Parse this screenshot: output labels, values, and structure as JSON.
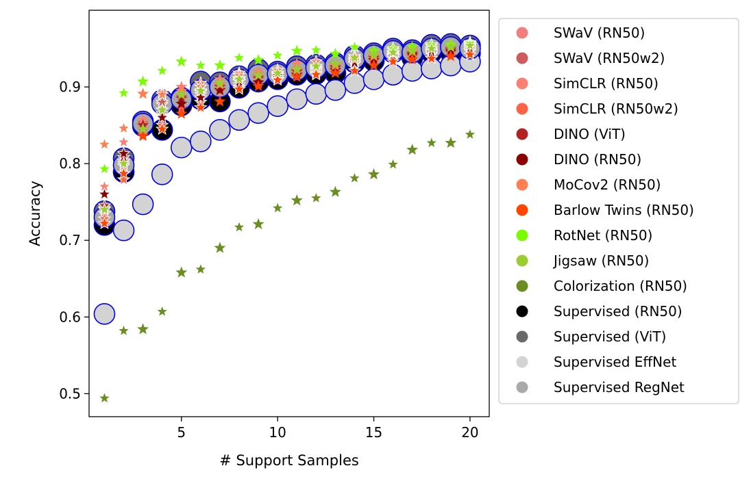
{
  "chart_data": {
    "type": "scatter",
    "title": "",
    "xlabel": "# Support Samples",
    "ylabel": "Accuracy",
    "xlim": [
      0.2,
      21
    ],
    "ylim": [
      0.47,
      1.0
    ],
    "xticks": [
      5,
      10,
      15,
      20
    ],
    "xtick_labels": [
      "5",
      "10",
      "15",
      "20"
    ],
    "yticks": [
      0.5,
      0.6,
      0.7,
      0.8,
      0.9
    ],
    "ytick_labels": [
      "0.5",
      "0.6",
      "0.7",
      "0.8",
      "0.9"
    ],
    "grid": false,
    "legend_position": "outside-right",
    "x": [
      1,
      2,
      3,
      4,
      5,
      6,
      7,
      8,
      9,
      10,
      11,
      12,
      13,
      14,
      15,
      16,
      17,
      18,
      19,
      20
    ],
    "series": [
      {
        "name": "SWaV (RN50)",
        "color": "#f08080",
        "marker": "star",
        "values": [
          0.735,
          0.797,
          0.848,
          0.877,
          0.884,
          0.89,
          0.902,
          0.907,
          0.91,
          0.912,
          0.918,
          0.922,
          0.924,
          0.933,
          0.936,
          0.94,
          0.942,
          0.946,
          0.948,
          0.95
        ]
      },
      {
        "name": "SWaV (RN50w2)",
        "color": "#cd5c5c",
        "marker": "star",
        "values": [
          0.742,
          0.803,
          0.853,
          0.88,
          0.887,
          0.894,
          0.905,
          0.911,
          0.913,
          0.916,
          0.921,
          0.924,
          0.926,
          0.935,
          0.938,
          0.942,
          0.944,
          0.948,
          0.95,
          0.952
        ]
      },
      {
        "name": "SimCLR (RN50)",
        "color": "#fa8072",
        "marker": "star",
        "values": [
          0.77,
          0.828,
          0.857,
          0.893,
          0.9,
          0.905,
          0.91,
          0.918,
          0.92,
          0.922,
          0.93,
          0.933,
          0.929,
          0.94,
          0.943,
          0.948,
          0.95,
          0.953,
          0.955,
          0.958
        ]
      },
      {
        "name": "SimCLR (RN50w2)",
        "color": "#ff6347",
        "marker": "star",
        "values": [
          0.728,
          0.779,
          0.838,
          0.85,
          0.872,
          0.88,
          0.895,
          0.9,
          0.905,
          0.91,
          0.915,
          0.918,
          0.92,
          0.93,
          0.933,
          0.937,
          0.939,
          0.942,
          0.944,
          0.946
        ]
      },
      {
        "name": "DINO (ViT)",
        "color": "#b22222",
        "marker": "star",
        "values": [
          0.745,
          0.808,
          0.85,
          0.865,
          0.885,
          0.893,
          0.9,
          0.908,
          0.911,
          0.915,
          0.92,
          0.924,
          0.925,
          0.934,
          0.938,
          0.941,
          0.943,
          0.946,
          0.948,
          0.95
        ]
      },
      {
        "name": "DINO (RN50)",
        "color": "#8b0000",
        "marker": "star",
        "values": [
          0.76,
          0.813,
          0.845,
          0.86,
          0.878,
          0.886,
          0.896,
          0.903,
          0.906,
          0.912,
          0.916,
          0.92,
          0.922,
          0.931,
          0.935,
          0.939,
          0.941,
          0.944,
          0.946,
          0.948
        ]
      },
      {
        "name": "MoCov2 (RN50)",
        "color": "#ff7f50",
        "marker": "star",
        "values": [
          0.825,
          0.846,
          0.891,
          0.89,
          0.895,
          0.9,
          0.903,
          0.915,
          0.916,
          0.918,
          0.922,
          0.925,
          0.928,
          0.936,
          0.94,
          0.944,
          0.946,
          0.95,
          0.952,
          0.955
        ]
      },
      {
        "name": "Barlow Twins (RN50)",
        "color": "#ff4500",
        "marker": "star",
        "values": [
          0.722,
          0.787,
          0.836,
          0.845,
          0.865,
          0.873,
          0.881,
          0.897,
          0.901,
          0.909,
          0.913,
          0.916,
          0.918,
          0.921,
          0.928,
          0.933,
          0.936,
          0.937,
          0.94,
          0.942
        ]
      },
      {
        "name": "RotNet (RN50)",
        "color": "#7cfc00",
        "marker": "star",
        "values": [
          0.793,
          0.892,
          0.907,
          0.921,
          0.933,
          0.928,
          0.928,
          0.938,
          0.935,
          0.941,
          0.947,
          0.948,
          0.943,
          0.952,
          0.947,
          0.95,
          0.952,
          0.955,
          0.955,
          0.957
        ]
      },
      {
        "name": "Jigsaw (RN50)",
        "color": "#9acd32",
        "marker": "star",
        "values": [
          0.74,
          0.8,
          0.845,
          0.87,
          0.89,
          0.895,
          0.905,
          0.91,
          0.915,
          0.918,
          0.923,
          0.927,
          0.93,
          0.938,
          0.942,
          0.945,
          0.947,
          0.95,
          0.952,
          0.954
        ]
      },
      {
        "name": "Colorization (RN50)",
        "color": "#6b8e23",
        "marker": "star",
        "values": [
          0.494,
          0.582,
          0.584,
          0.607,
          0.658,
          0.662,
          0.69,
          0.717,
          0.721,
          0.742,
          0.752,
          0.755,
          0.763,
          0.781,
          0.786,
          0.799,
          0.818,
          0.827,
          0.827,
          0.838
        ]
      },
      {
        "name": "Supervised (RN50)",
        "color": "#000000",
        "marker": "circle",
        "values": [
          0.72,
          0.789,
          0.849,
          0.844,
          0.876,
          0.884,
          0.881,
          0.899,
          0.907,
          0.91,
          0.916,
          0.917,
          0.918,
          0.932,
          0.934,
          0.945,
          0.938,
          0.945,
          0.945,
          0.944
        ]
      },
      {
        "name": "Supervised (ViT)",
        "color": "#696969",
        "marker": "circle",
        "values": [
          0.738,
          0.807,
          0.855,
          0.883,
          0.886,
          0.907,
          0.906,
          0.914,
          0.923,
          0.92,
          0.927,
          0.929,
          0.931,
          0.941,
          0.944,
          0.95,
          0.948,
          0.955,
          0.956,
          0.954
        ]
      },
      {
        "name": "Supervised EffNet",
        "color": "#d3d3d3",
        "marker": "circle",
        "values": [
          0.604,
          0.713,
          0.747,
          0.786,
          0.821,
          0.829,
          0.844,
          0.857,
          0.866,
          0.875,
          0.884,
          0.891,
          0.896,
          0.905,
          0.91,
          0.916,
          0.921,
          0.924,
          0.928,
          0.933
        ]
      },
      {
        "name": "Supervised RegNet",
        "color": "#a9a9a9",
        "marker": "circle",
        "values": [
          0.73,
          0.798,
          0.852,
          0.878,
          0.884,
          0.896,
          0.9,
          0.91,
          0.916,
          0.917,
          0.922,
          0.925,
          0.928,
          0.937,
          0.941,
          0.947,
          0.945,
          0.95,
          0.952,
          0.95
        ]
      }
    ]
  }
}
